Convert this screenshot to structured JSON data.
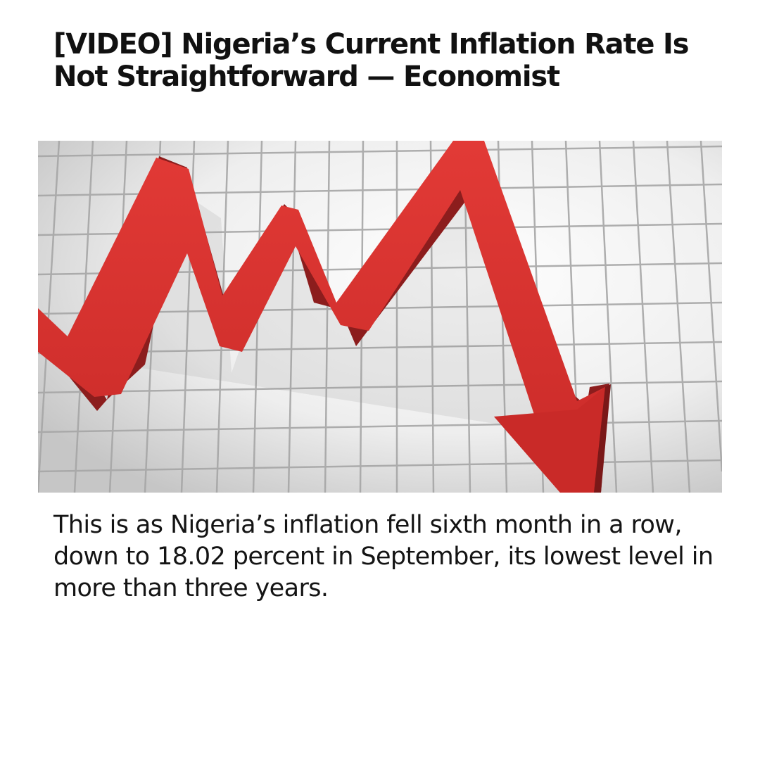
{
  "article": {
    "headline": "[VIDEO] Nigeria’s Current Inflation Rate Is Not Straightforward — Economist",
    "summary": "This is as Nigeria’s inflation fell sixth month in a row, down to 18.02 percent in September, its lowest level in more than three years."
  },
  "hero_image": {
    "subject": "red-zigzag-arrow-trending-down-on-grid",
    "colors": {
      "arrow_face": "#d9302f",
      "arrow_side": "#8c1d1d",
      "grid_line": "#a9a9a9",
      "background_light": "#ffffff",
      "background_dark": "#c9c9c9"
    }
  }
}
